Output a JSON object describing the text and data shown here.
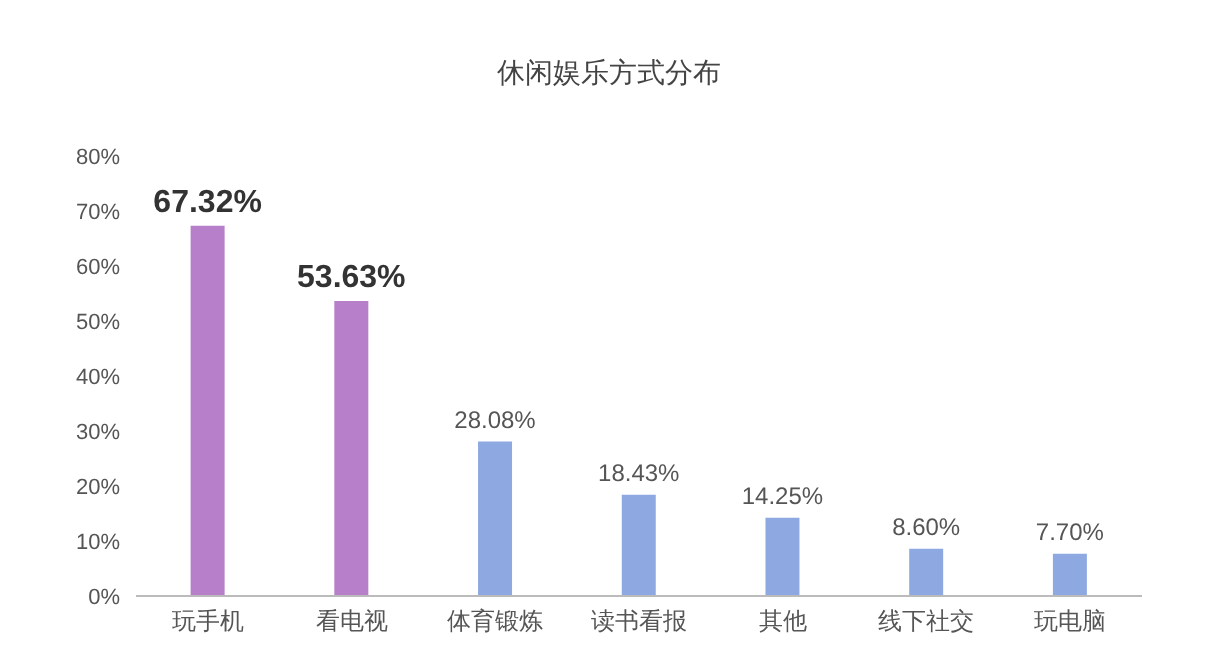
{
  "chart_data": {
    "type": "bar",
    "title": "休闲娱乐方式分布",
    "categories": [
      "玩手机",
      "看电视",
      "体育锻炼",
      "读书看报",
      "其他",
      "线下社交",
      "玩电脑"
    ],
    "values": [
      67.32,
      53.63,
      28.08,
      18.43,
      14.25,
      8.6,
      7.7
    ],
    "value_labels": [
      "67.32%",
      "53.63%",
      "28.08%",
      "18.43%",
      "14.25%",
      "8.60%",
      "7.70%"
    ],
    "colors": [
      "#b77fc9",
      "#b77fc9",
      "#8ea9e2",
      "#8ea9e2",
      "#8ea9e2",
      "#8ea9e2",
      "#8ea9e2"
    ],
    "ylim": [
      0,
      80
    ],
    "yticks": [
      {
        "value": 0,
        "label": "0%"
      },
      {
        "value": 10,
        "label": "10%"
      },
      {
        "value": 20,
        "label": "20%"
      },
      {
        "value": 30,
        "label": "30%"
      },
      {
        "value": 40,
        "label": "40%"
      },
      {
        "value": 50,
        "label": "50%"
      },
      {
        "value": 60,
        "label": "60%"
      },
      {
        "value": 70,
        "label": "70%"
      },
      {
        "value": 80,
        "label": "80%"
      }
    ],
    "grid": false
  }
}
